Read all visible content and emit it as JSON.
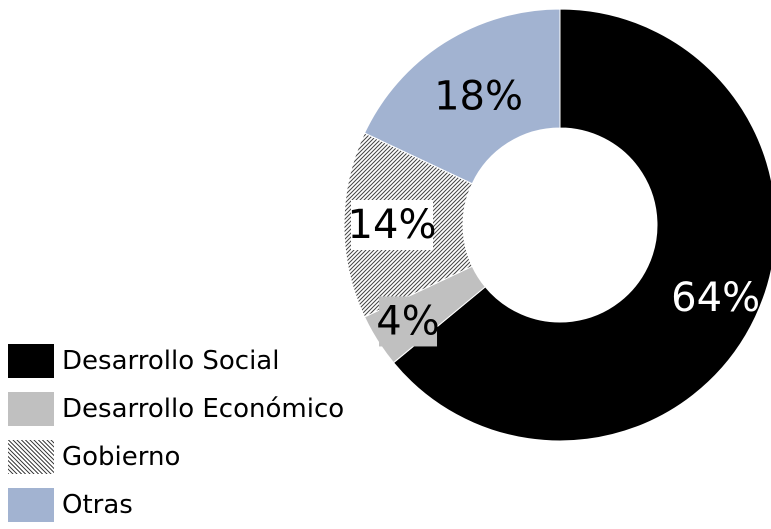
{
  "chart_data": {
    "type": "pie",
    "donut": true,
    "slices": [
      {
        "label": "Desarrollo Social",
        "value": 64,
        "display": "64%",
        "color": "#000000",
        "pattern": "solid",
        "text_color": "#ffffff"
      },
      {
        "label": "Desarrollo Económico",
        "value": 4,
        "display": "4%",
        "color": "#c0c0c0",
        "pattern": "solid",
        "text_color": "#000000"
      },
      {
        "label": "Gobierno",
        "value": 14,
        "display": "14%",
        "color": "#555555",
        "pattern": "diagonal-hatch",
        "text_color": "#000000"
      },
      {
        "label": "Otras",
        "value": 18,
        "display": "18%",
        "color": "#a2b3d1",
        "pattern": "solid",
        "text_color": "#000000"
      }
    ],
    "legend_position": "bottom-left"
  }
}
